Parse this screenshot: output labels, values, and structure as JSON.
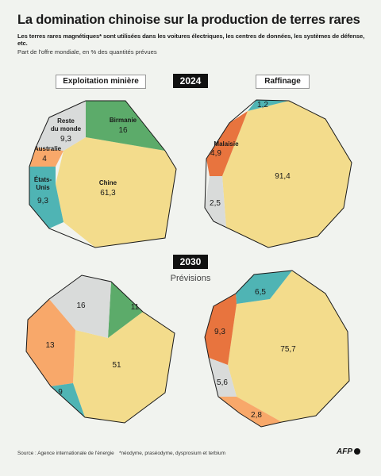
{
  "title": "La domination chinoise sur la production de terres rares",
  "subtitle": "Les terres rares magnétiques* sont utilisées dans les voitures électriques, les centres de données, les systèmes de défense, etc.",
  "unit_note": "Part de l'offre mondiale, en % des quantités prévues",
  "columns": {
    "mining": "Exploitation minière",
    "refining": "Raffinage"
  },
  "years": {
    "current": "2024",
    "future": "2030"
  },
  "forecast_label": "Prévisions",
  "source": "Source : Agence internationale de l'énergie",
  "footnote": "*néodyme, praséodyme, dysprosium et terbium",
  "brand": "AFP",
  "colors": {
    "china": "#f3dc8c",
    "burma": "#5cab6a",
    "rest": "#d9dbda",
    "australia": "#f8a86a",
    "usa": "#4fb4b4",
    "malaysia": "#e8743e"
  },
  "chart_data": [
    {
      "type": "pie",
      "year": "2024",
      "category": "Exploitation minière",
      "slices": [
        {
          "label": "Chine",
          "value": 61.3,
          "value_text": "61,3",
          "color_key": "china"
        },
        {
          "label": "Birmanie",
          "value": 16,
          "value_text": "16",
          "color_key": "burma"
        },
        {
          "label": "Reste du monde",
          "value": 9.3,
          "value_text": "9,3",
          "color_key": "rest"
        },
        {
          "label": "Australie",
          "value": 4,
          "value_text": "4",
          "color_key": "australia"
        },
        {
          "label": "États-Unis",
          "value": 9.3,
          "value_text": "9,3",
          "color_key": "usa"
        }
      ]
    },
    {
      "type": "pie",
      "year": "2024",
      "category": "Raffinage",
      "slices": [
        {
          "label": "",
          "value": 91.4,
          "value_text": "91,4",
          "color_key": "china"
        },
        {
          "label": "",
          "value": 1.2,
          "value_text": "1,2",
          "color_key": "usa"
        },
        {
          "label": "Malaisie",
          "value": 4.9,
          "value_text": "4,9",
          "color_key": "malaysia"
        },
        {
          "label": "",
          "value": 2.5,
          "value_text": "2,5",
          "color_key": "rest"
        }
      ]
    },
    {
      "type": "pie",
      "year": "2030",
      "category": "Exploitation minière",
      "slices": [
        {
          "label": "",
          "value": 51,
          "value_text": "51",
          "color_key": "china"
        },
        {
          "label": "",
          "value": 11,
          "value_text": "11",
          "color_key": "burma"
        },
        {
          "label": "",
          "value": 16,
          "value_text": "16",
          "color_key": "rest"
        },
        {
          "label": "",
          "value": 13,
          "value_text": "13",
          "color_key": "australia"
        },
        {
          "label": "",
          "value": 9,
          "value_text": "9",
          "color_key": "usa"
        }
      ]
    },
    {
      "type": "pie",
      "year": "2030",
      "category": "Raffinage",
      "slices": [
        {
          "label": "",
          "value": 75.7,
          "value_text": "75,7",
          "color_key": "china"
        },
        {
          "label": "",
          "value": 6.5,
          "value_text": "6,5",
          "color_key": "usa"
        },
        {
          "label": "",
          "value": 9.3,
          "value_text": "9,3",
          "color_key": "malaysia"
        },
        {
          "label": "",
          "value": 5.6,
          "value_text": "5,6",
          "color_key": "rest"
        },
        {
          "label": "",
          "value": 2.8,
          "value_text": "2,8",
          "color_key": "australia"
        }
      ]
    }
  ]
}
